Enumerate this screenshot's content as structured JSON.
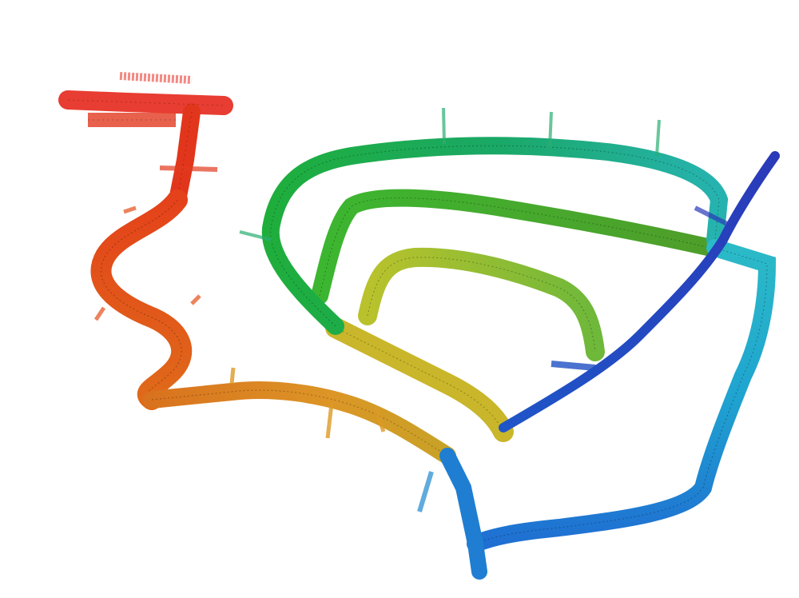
{
  "map": {
    "colormap": [
      "#e8281e",
      "#e45a1a",
      "#dd8a22",
      "#c9b02a",
      "#a6c93a",
      "#4fbf3a",
      "#1faa52",
      "#25b59a",
      "#23a9c9",
      "#1f7ed2",
      "#1f4fc4",
      "#2a2fb0"
    ],
    "background": "#ffffff",
    "segments": [
      {
        "id": "start-corridor",
        "color_index": 0
      },
      {
        "id": "serpentine",
        "color_index": 1
      },
      {
        "id": "lower-left-corridor",
        "color_index": 2
      },
      {
        "id": "inner-loop",
        "color_index": 4
      },
      {
        "id": "middle-loop",
        "color_index": 5
      },
      {
        "id": "outer-loop",
        "color_index": 6
      },
      {
        "id": "right-loop",
        "color_index": 8
      },
      {
        "id": "diagonal-return",
        "color_index": 10
      }
    ]
  }
}
